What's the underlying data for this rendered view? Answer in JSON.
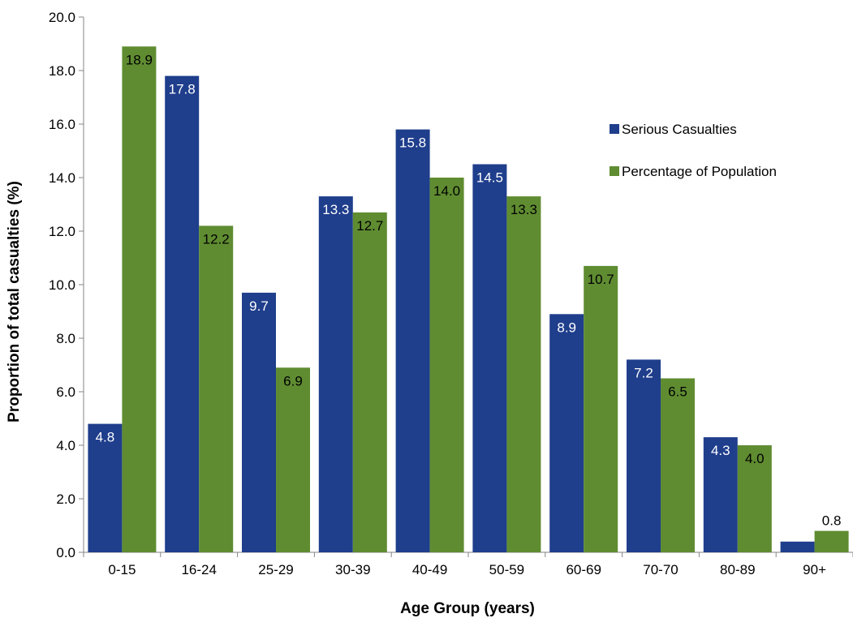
{
  "chart_data": {
    "type": "bar",
    "title": "",
    "xlabel": "Age Group (years)",
    "ylabel": "Proportion of total casualties (%)",
    "ylim": [
      0,
      20
    ],
    "yticks": [
      "0.0",
      "2.0",
      "4.0",
      "6.0",
      "8.0",
      "10.0",
      "12.0",
      "14.0",
      "16.0",
      "18.0",
      "20.0"
    ],
    "grid": false,
    "legend_position": "right",
    "categories": [
      "0-15",
      "16-24",
      "25-29",
      "30-39",
      "40-49",
      "50-59",
      "60-69",
      "70-70",
      "80-89",
      "90+"
    ],
    "series": [
      {
        "name": "Serious Casualties",
        "color": "#1F3E8C",
        "label_color": "#ffffff",
        "values": [
          4.8,
          17.8,
          9.7,
          13.3,
          15.8,
          14.5,
          8.9,
          7.2,
          4.3,
          0.4
        ],
        "labels": [
          "4.8",
          "17.8",
          "9.7",
          "13.3",
          "15.8",
          "14.5",
          "8.9",
          "7.2",
          "4.3",
          ""
        ]
      },
      {
        "name": "Percentage of Population",
        "color": "#5F8C31",
        "label_color": "#000000",
        "values": [
          18.9,
          12.2,
          6.9,
          12.7,
          14.0,
          13.3,
          10.7,
          6.5,
          4.0,
          0.8
        ],
        "labels": [
          "18.9",
          "12.2",
          "6.9",
          "12.7",
          "14.0",
          "13.3",
          "10.7",
          "6.5",
          "4.0",
          "0.8"
        ]
      }
    ]
  }
}
